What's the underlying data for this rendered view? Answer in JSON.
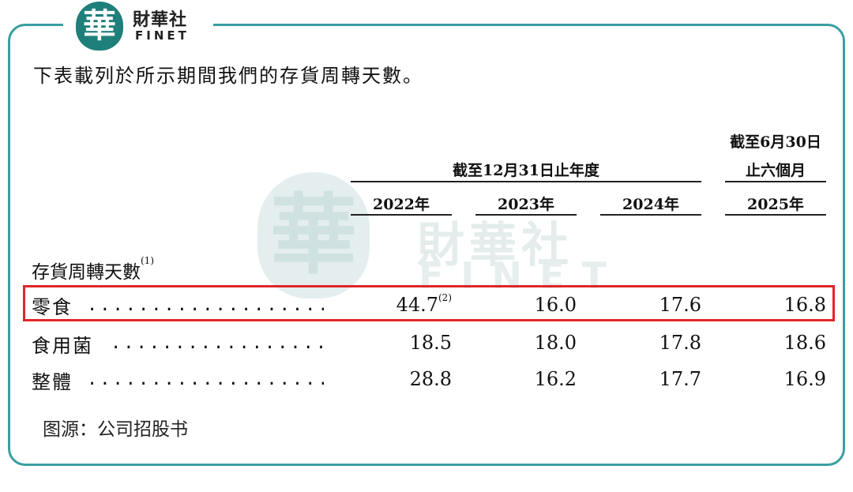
{
  "logo": {
    "seal_char": "華",
    "cn": "財華社",
    "en": "FINET"
  },
  "intro": "下表載列於所示期間我們的存貨周轉天數。",
  "header": {
    "group_year": "截至12月31日止年度",
    "group_half_line1": "截至6月30日",
    "group_half_line2": "止六個月",
    "years": [
      "2022年",
      "2023年",
      "2024年",
      "2025年"
    ]
  },
  "section": {
    "label": "存貨周轉天數",
    "note": "(1)"
  },
  "rows": [
    {
      "label": "零食",
      "leader": "....................",
      "values": [
        "44.7",
        "16.0",
        "17.6",
        "16.8"
      ],
      "note_first": "(2)"
    },
    {
      "label": "食用菌",
      "leader": "..................",
      "values": [
        "18.5",
        "18.0",
        "17.8",
        "18.6"
      ]
    },
    {
      "label": "整體",
      "leader": "....................",
      "values": [
        "28.8",
        "16.2",
        "17.7",
        "16.9"
      ]
    }
  ],
  "source": "图源：公司招股书",
  "colors": {
    "frame": "#3a9ea0",
    "highlight": "#e0262a",
    "seal": "#1f7f7a"
  }
}
